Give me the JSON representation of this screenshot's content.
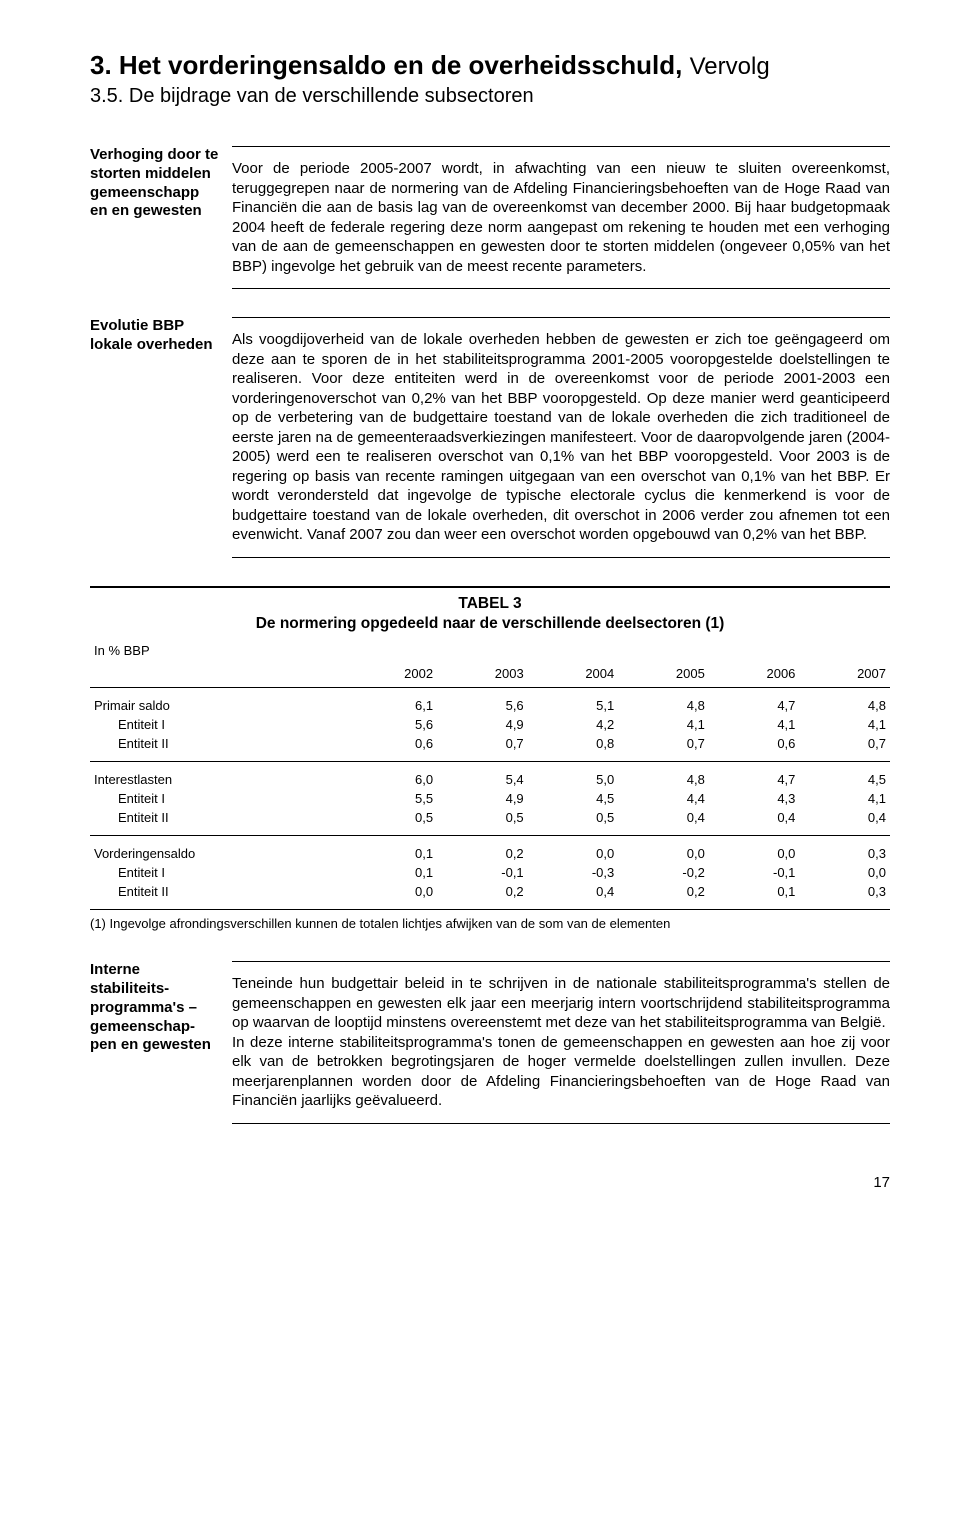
{
  "heading": {
    "main": "3. Het vorderingensaldo en de overheidsschuld,",
    "cont": "Vervolg",
    "sub": "3.5. De bijdrage van de verschillende subsectoren"
  },
  "block1": {
    "side": "Verhoging door te storten middelen gemeenschapp en en gewesten",
    "body": "Voor de periode 2005-2007 wordt, in afwachting van een nieuw te sluiten overeenkomst, teruggegrepen naar de normering van de Afdeling Financieringsbehoeften van de Hoge Raad van Financiën die aan de basis lag van de overeenkomst van december 2000.  Bij haar budgetopmaak 2004 heeft de federale regering deze norm aangepast om rekening te houden met een verhoging van de aan de gemeenschappen en gewesten door te storten middelen (ongeveer 0,05% van het BBP) ingevolge het gebruik van de meest recente parameters."
  },
  "block2": {
    "side": "Evolutie BBP lokale overheden",
    "body": "Als voogdijoverheid van de lokale overheden hebben de gewesten er zich toe geëngageerd om deze aan te sporen de in het stabiliteitsprogramma 2001-2005 vooropgestelde doelstellingen te realiseren.  Voor deze entiteiten werd in de overeenkomst voor de periode 2001-2003 een vorderingenoverschot van 0,2% van het BBP vooropgesteld.  Op deze manier werd geanticipeerd op de verbetering van de budgettaire toestand van de lokale overheden die zich traditioneel de eerste jaren na de gemeenteraadsverkiezingen manifesteert.  Voor de daaropvolgende jaren (2004-2005) werd een te realiseren overschot van 0,1% van het BBP vooropgesteld. Voor 2003 is de regering op basis van recente ramingen uitgegaan van een overschot van 0,1% van het BBP.  Er wordt verondersteld dat ingevolge de typische electorale cyclus die kenmerkend is voor de budgettaire toestand van de lokale overheden, dit overschot in 2006 verder zou afnemen tot een evenwicht.   Vanaf 2007 zou dan weer een overschot worden opgebouwd van 0,2% van het BBP."
  },
  "table": {
    "title_line1": "TABEL 3",
    "title_line2": "De normering opgedeeld naar de verschillende deelsectoren (1)",
    "unit": "In % BBP",
    "years": [
      "2002",
      "2003",
      "2004",
      "2005",
      "2006",
      "2007"
    ],
    "groups": [
      {
        "rows": [
          {
            "label": "Primair saldo",
            "indent": false,
            "vals": [
              "6,1",
              "5,6",
              "5,1",
              "4,8",
              "4,7",
              "4,8"
            ]
          },
          {
            "label": "Entiteit I",
            "indent": true,
            "vals": [
              "5,6",
              "4,9",
              "4,2",
              "4,1",
              "4,1",
              "4,1"
            ]
          },
          {
            "label": "Entiteit II",
            "indent": true,
            "vals": [
              "0,6",
              "0,7",
              "0,8",
              "0,7",
              "0,6",
              "0,7"
            ]
          }
        ]
      },
      {
        "rows": [
          {
            "label": "Interestlasten",
            "indent": false,
            "vals": [
              "6,0",
              "5,4",
              "5,0",
              "4,8",
              "4,7",
              "4,5"
            ]
          },
          {
            "label": "Entiteit I",
            "indent": true,
            "vals": [
              "5,5",
              "4,9",
              "4,5",
              "4,4",
              "4,3",
              "4,1"
            ]
          },
          {
            "label": "Entiteit II",
            "indent": true,
            "vals": [
              "0,5",
              "0,5",
              "0,5",
              "0,4",
              "0,4",
              "0,4"
            ]
          }
        ]
      },
      {
        "rows": [
          {
            "label": "Vorderingensaldo",
            "indent": false,
            "vals": [
              "0,1",
              "0,2",
              "0,0",
              "0,0",
              "0,0",
              "0,3"
            ]
          },
          {
            "label": "Entiteit I",
            "indent": true,
            "vals": [
              "0,1",
              "-0,1",
              "-0,3",
              "-0,2",
              "-0,1",
              "0,0"
            ]
          },
          {
            "label": "Entiteit II",
            "indent": true,
            "vals": [
              "0,0",
              "0,2",
              "0,4",
              "0,2",
              "0,1",
              "0,3"
            ]
          }
        ]
      }
    ],
    "footnote": "(1) Ingevolge afrondingsverschillen kunnen de totalen lichtjes afwijken van de som van de elementen"
  },
  "block3": {
    "side": "Interne stabiliteits-programma's – gemeenschap-pen en gewesten",
    "body": "Teneinde hun budgettair beleid in te schrijven in de nationale stabiliteitsprogramma's stellen de gemeenschappen en gewesten elk jaar een meerjarig intern voortschrijdend stabiliteitsprogramma op waarvan de looptijd minstens overeenstemt met deze van het stabiliteitsprogramma van België.\nIn deze interne stabiliteitsprogramma's tonen de gemeenschappen en gewesten aan hoe zij voor elk van de betrokken begrotingsjaren de hoger vermelde doelstellingen zullen invullen.  Deze meerjarenplannen worden door de Afdeling Financieringsbehoeften van de Hoge Raad van Financiën jaarlijks geëvalueerd."
  },
  "page_number": "17"
}
